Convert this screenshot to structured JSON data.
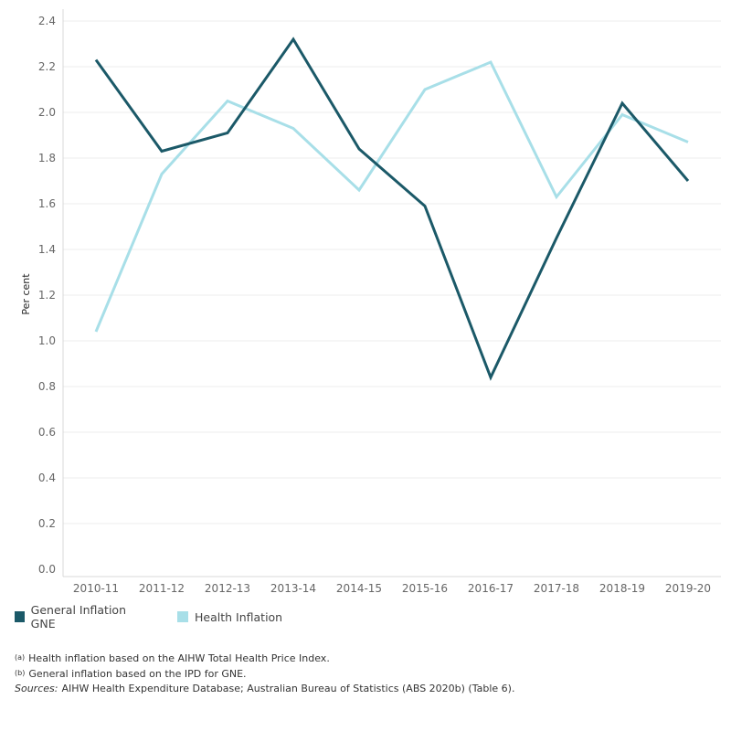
{
  "chart_data": {
    "type": "line",
    "categories": [
      "2010-11",
      "2011-12",
      "2012-13",
      "2013-14",
      "2014-15",
      "2015-16",
      "2016-17",
      "2017-18",
      "2018-19",
      "2019-20"
    ],
    "series": [
      {
        "name": "General Inflation GNE",
        "color": "#1b5968",
        "values": [
          2.23,
          1.83,
          1.91,
          2.32,
          1.84,
          1.59,
          0.84,
          1.45,
          2.04,
          1.7
        ]
      },
      {
        "name": "Health Inflation",
        "color": "#a8dfe8",
        "values": [
          1.04,
          1.73,
          2.05,
          1.93,
          1.66,
          2.1,
          2.22,
          1.63,
          1.99,
          1.87
        ]
      }
    ],
    "yticks": [
      "0.0",
      "0.2",
      "0.4",
      "0.6",
      "0.8",
      "1.0",
      "1.2",
      "1.4",
      "1.6",
      "1.8",
      "2.0",
      "2.2",
      "2.4"
    ],
    "ylabel": "Per cent",
    "xlabel": "",
    "ylim": [
      0,
      2.4
    ],
    "grid": true,
    "legend_position": "bottom-left"
  },
  "legend": [
    {
      "label": "General Inflation GNE",
      "color": "#1b5968"
    },
    {
      "label": "Health Inflation",
      "color": "#a8dfe8"
    }
  ],
  "notes": {
    "a_marker": "(a)",
    "a_text": "Health inflation based on the AIHW Total Health Price Index.",
    "b_marker": "(b)",
    "b_text": "General inflation based on the IPD for GNE.",
    "sources_label": "Sources:",
    "sources_text": "AIHW Health Expenditure Database; Australian Bureau of Statistics (ABS 2020b) (Table 6)."
  }
}
